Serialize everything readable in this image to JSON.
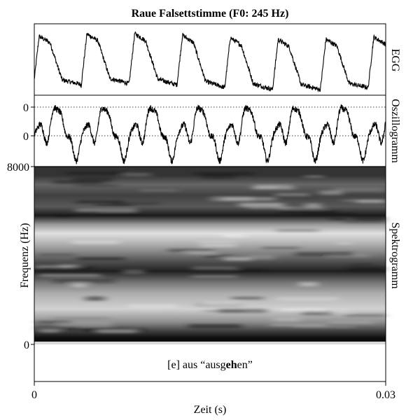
{
  "title": "Raue Falsettstimme (F0: 245 Hz)",
  "panel_labels": {
    "egg": "EGG",
    "osc": "Oszillogramm",
    "spec": "Spektrogramm"
  },
  "y_label": "Frequenz (Hz)",
  "x_label": "Zeit (s)",
  "annotation": {
    "pre": "[e] aus “ausg",
    "bold": "eh",
    "post": "en”"
  },
  "chart_data": [
    {
      "type": "line",
      "name_on_chart": "EGG",
      "x_range": [
        0,
        0.03
      ],
      "grid": false,
      "description_of_shape": "periodic glottal contact waveform, about 7.3 cycles",
      "fundamental_hz": 245,
      "periods_visible": 7.35
    },
    {
      "type": "line",
      "name_on_chart": "Oszillogramm",
      "x_range": [
        0,
        0.03
      ],
      "y_ticks": [
        "0",
        "0"
      ],
      "grid": "dotted zero lines",
      "fundamental_hz": 245
    },
    {
      "type": "heatmap",
      "name_on_chart": "Spektrogramm",
      "x_range": [
        0,
        0.03
      ],
      "y_range": [
        0,
        8000
      ],
      "y_ticks": [
        "8000",
        "0"
      ],
      "colormap": "grayscale",
      "bands": [
        {
          "freq": 280,
          "level": 0.05
        },
        {
          "freq": 600,
          "level": 0.25
        },
        {
          "freq": 1000,
          "level": 0.55
        },
        {
          "freq": 1600,
          "level": 0.82
        },
        {
          "freq": 2300,
          "level": 0.68
        },
        {
          "freq": 2800,
          "level": 0.45
        },
        {
          "freq": 3300,
          "level": 0.12
        },
        {
          "freq": 3800,
          "level": 0.35
        },
        {
          "freq": 4200,
          "level": 0.55
        },
        {
          "freq": 4600,
          "level": 0.72
        },
        {
          "freq": 5000,
          "level": 0.88
        },
        {
          "freq": 5400,
          "level": 0.6
        },
        {
          "freq": 5800,
          "level": 0.1
        },
        {
          "freq": 6200,
          "level": 0.35
        },
        {
          "freq": 6700,
          "level": 0.25
        },
        {
          "freq": 7200,
          "level": 0.4
        },
        {
          "freq": 7600,
          "level": 0.2
        }
      ]
    }
  ],
  "x_ticks": [
    "0",
    "0.03"
  ]
}
